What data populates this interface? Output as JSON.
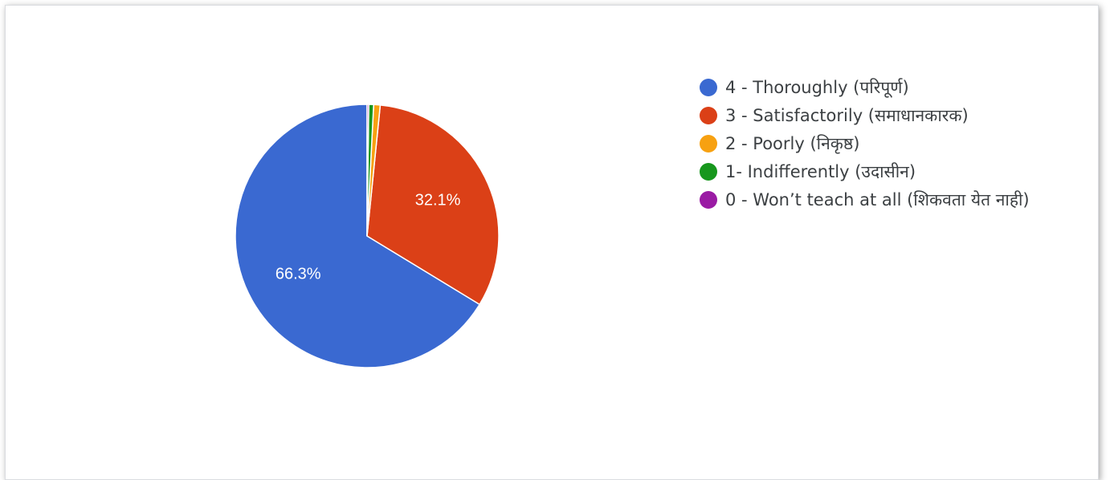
{
  "chart_data": {
    "type": "pie",
    "title": "",
    "slices": [
      {
        "label": "4 - Thoroughly (परिपूर्ण)",
        "value": 66.3,
        "color": "#3a69d1",
        "data_label": "66.3%"
      },
      {
        "label": "3 - Satisfactorily (समाधानकारक)",
        "value": 32.1,
        "color": "#db4017",
        "data_label": "32.1%"
      },
      {
        "label": "2 - Poorly (निकृष्ठ)",
        "value": 0.8,
        "color": "#f7a111",
        "data_label": ""
      },
      {
        "label": "1- Indifferently (उदासीन)",
        "value": 0.6,
        "color": "#17971d",
        "data_label": ""
      },
      {
        "label": "0 - Won’t teach at all (शिकवता येत नाही)",
        "value": 0.2,
        "color": "#9a1ba4",
        "data_label": ""
      }
    ],
    "start_angle_deg": 90,
    "direction": "counterclockwise",
    "legend_position": "right"
  }
}
